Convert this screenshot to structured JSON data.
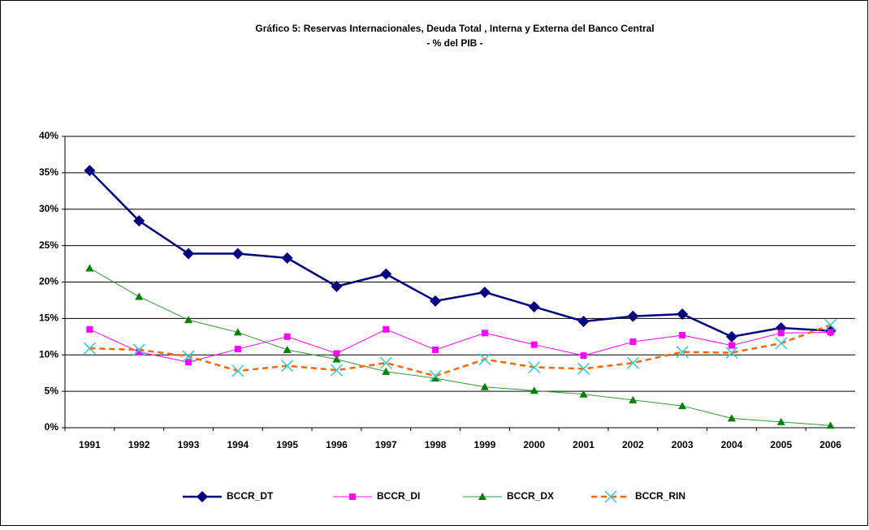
{
  "chart_data": {
    "type": "line",
    "title": "Gráfico 5: Reservas Internacionales, Deuda Total , Interna y Externa del Banco Central",
    "subtitle": "- % del PIB -",
    "categories": [
      "1991",
      "1992",
      "1993",
      "1994",
      "1995",
      "1996",
      "1997",
      "1998",
      "1999",
      "2000",
      "2001",
      "2002",
      "2003",
      "2004",
      "2005",
      "2006"
    ],
    "series": [
      {
        "name": "BCCR_DT",
        "color": "#000080",
        "marker": "diamond",
        "marker_color": "#000080",
        "width": 2.5,
        "dash": false,
        "values": [
          35.3,
          28.4,
          23.9,
          23.9,
          23.3,
          19.4,
          21.1,
          17.4,
          18.6,
          16.6,
          14.6,
          15.3,
          15.6,
          12.5,
          13.7,
          13.3
        ]
      },
      {
        "name": "BCCR_DI",
        "color": "#ff00ff",
        "marker": "square",
        "marker_color": "#ff00ff",
        "width": 1,
        "dash": false,
        "values": [
          13.5,
          10.4,
          9.0,
          10.8,
          12.5,
          10.2,
          13.5,
          10.7,
          13.0,
          11.4,
          9.9,
          11.8,
          12.7,
          11.3,
          13.0,
          13.1
        ]
      },
      {
        "name": "BCCR_DX",
        "color": "#339933",
        "marker": "triangle",
        "marker_color": "#008000",
        "width": 1,
        "dash": false,
        "values": [
          21.9,
          18.0,
          14.8,
          13.1,
          10.7,
          9.4,
          7.7,
          6.8,
          5.6,
          5.1,
          4.6,
          3.8,
          3.0,
          1.3,
          0.8,
          0.3
        ]
      },
      {
        "name": "BCCR_RIN",
        "color": "#ff6600",
        "marker": "x",
        "marker_color": "#33cccc",
        "width": 2.5,
        "dash": true,
        "values": [
          10.9,
          10.7,
          9.8,
          7.8,
          8.5,
          7.9,
          8.9,
          7.1,
          9.4,
          8.3,
          8.1,
          8.9,
          10.4,
          10.3,
          11.6,
          14.1
        ]
      }
    ],
    "ylim": [
      0,
      40
    ],
    "yticks": [
      {
        "value": 0,
        "label": "0%"
      },
      {
        "value": 5,
        "label": "5%"
      },
      {
        "value": 10,
        "label": "10%"
      },
      {
        "value": 15,
        "label": "15%"
      },
      {
        "value": 20,
        "label": "20%"
      },
      {
        "value": 25,
        "label": "25%"
      },
      {
        "value": 30,
        "label": "30%"
      },
      {
        "value": 35,
        "label": "35%"
      },
      {
        "value": 40,
        "label": "40%"
      }
    ],
    "grid": true,
    "legend": "bottom"
  }
}
